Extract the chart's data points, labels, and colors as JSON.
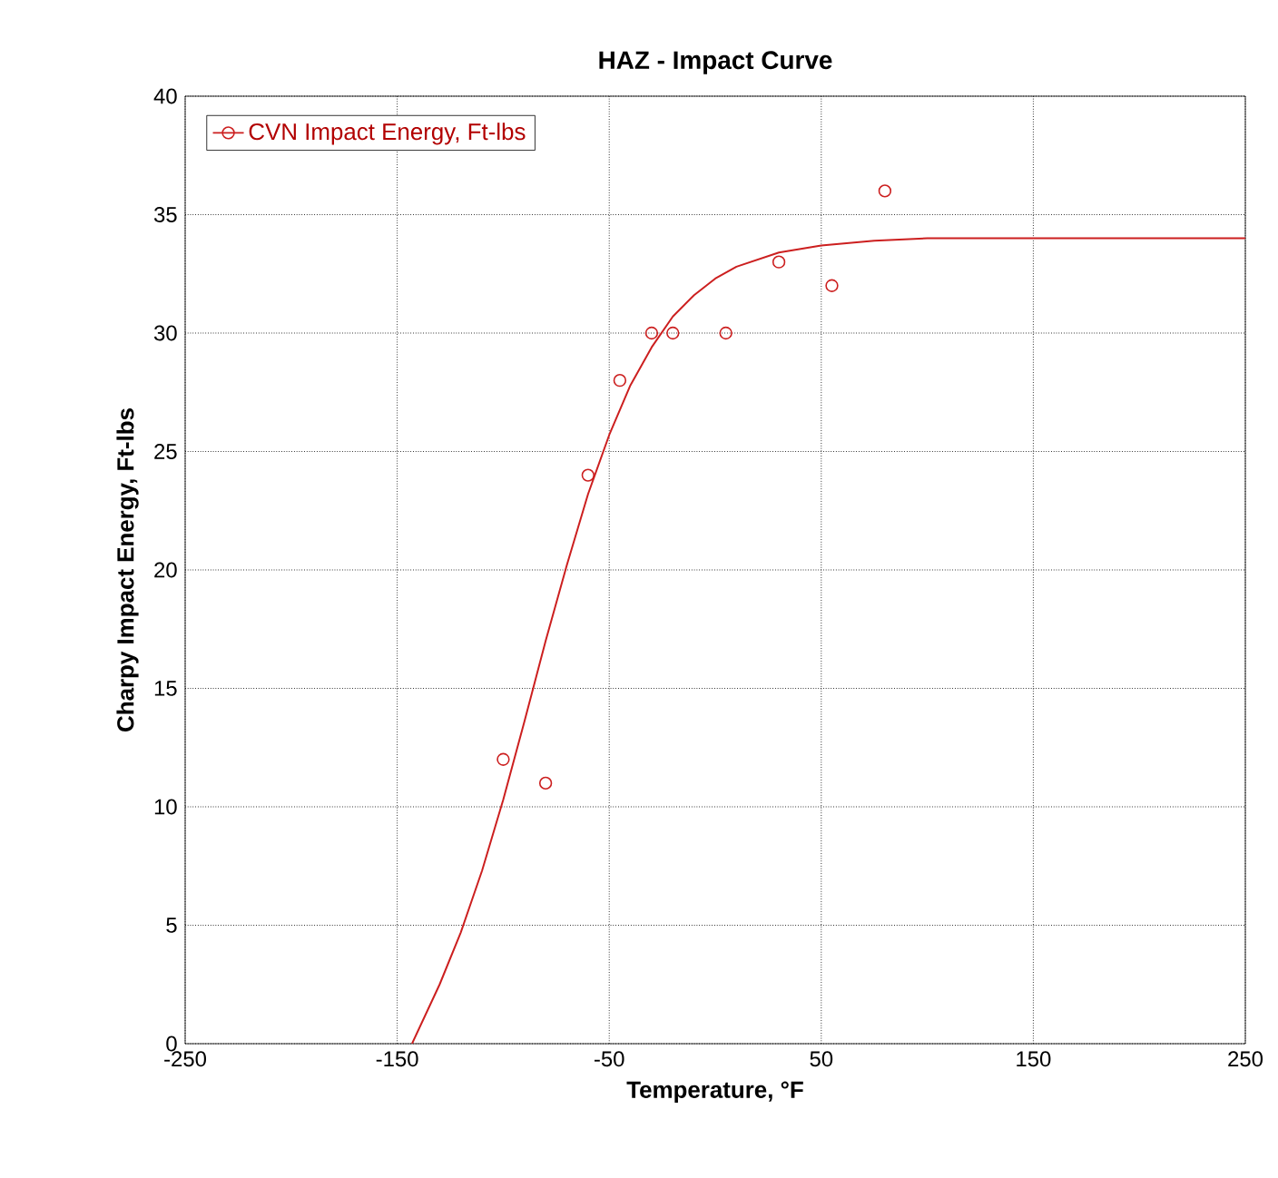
{
  "chart_data": {
    "type": "scatter",
    "title": "HAZ - Impact Curve",
    "xlabel": "Temperature, °F",
    "ylabel": "Charpy Impact Energy, Ft-lbs",
    "xlim": [
      -250,
      250
    ],
    "ylim": [
      0,
      40
    ],
    "xticks": [
      -250,
      -150,
      -50,
      50,
      150,
      250
    ],
    "yticks": [
      0,
      5,
      10,
      15,
      20,
      25,
      30,
      35,
      40
    ],
    "grid": true,
    "legend": "top left",
    "series": [
      {
        "name": "CVN Impact Energy, Ft-lbs",
        "color": "#cc1f1f",
        "marker": "circle",
        "x": [
          -100,
          -80,
          -60,
          -45,
          -30,
          -20,
          5,
          30,
          55,
          80
        ],
        "values": [
          12,
          11,
          24,
          28,
          30,
          30,
          30,
          33,
          32,
          36
        ]
      },
      {
        "type": "line",
        "color": "#cc1f1f",
        "marker": "none",
        "line_style": "solid",
        "x": [
          -143,
          -130,
          -120,
          -110,
          -100,
          -90,
          -80,
          -70,
          -60,
          -50,
          -40,
          -30,
          -20,
          -10,
          0,
          10,
          20,
          30,
          50,
          75,
          100,
          150,
          200,
          250
        ],
        "values": [
          0,
          2.5,
          4.7,
          7.3,
          10.3,
          13.6,
          17.0,
          20.2,
          23.2,
          25.7,
          27.8,
          29.4,
          30.7,
          31.6,
          32.3,
          32.8,
          33.1,
          33.4,
          33.7,
          33.9,
          34.0,
          34.0,
          34.0,
          34.0
        ]
      }
    ]
  }
}
